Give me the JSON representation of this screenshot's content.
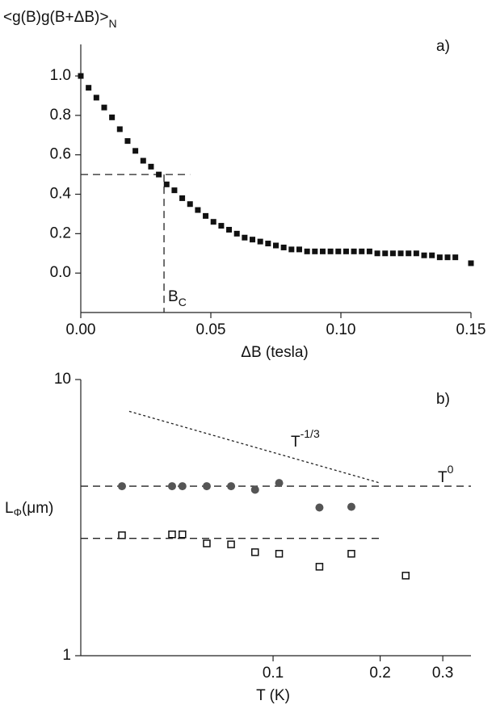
{
  "chart_data": [
    {
      "type": "scatter",
      "panel_label": "a)",
      "ylabel": "<g(B)g(B+ΔB)>",
      "ylabel_sub": "N",
      "xlabel": "ΔB (tesla)",
      "annotations": [
        {
          "text": "B",
          "sub": "C"
        }
      ],
      "xlim": [
        0,
        0.15
      ],
      "ylim": [
        -0.2,
        1.16
      ],
      "xticks": [
        {
          "value": 0,
          "label": "0.00"
        },
        0.05,
        {
          "value": 0.1,
          "label": "0.10"
        },
        0.15
      ],
      "yticks": [
        {
          "value": 0,
          "label": "0.0"
        },
        0.2,
        0.4,
        0.6,
        0.8,
        {
          "value": 1,
          "label": "1.0"
        }
      ],
      "series": [
        {
          "marker": "square",
          "color": "#111",
          "x": [
            0,
            0.003,
            0.006,
            0.009,
            0.012,
            0.015,
            0.018,
            0.021,
            0.024,
            0.027,
            0.03,
            0.033,
            0.036,
            0.039,
            0.042,
            0.045,
            0.048,
            0.051,
            0.054,
            0.057,
            0.06,
            0.063,
            0.066,
            0.069,
            0.072,
            0.075,
            0.078,
            0.081,
            0.084,
            0.087,
            0.09,
            0.093,
            0.096,
            0.099,
            0.102,
            0.105,
            0.108,
            0.111,
            0.114,
            0.117,
            0.12,
            0.123,
            0.126,
            0.129,
            0.132,
            0.135,
            0.138,
            0.141,
            0.144,
            0.15
          ],
          "values": [
            1.0,
            0.94,
            0.89,
            0.84,
            0.79,
            0.73,
            0.67,
            0.62,
            0.57,
            0.54,
            0.5,
            0.45,
            0.42,
            0.38,
            0.35,
            0.32,
            0.29,
            0.26,
            0.24,
            0.22,
            0.2,
            0.18,
            0.17,
            0.16,
            0.15,
            0.14,
            0.13,
            0.12,
            0.12,
            0.11,
            0.11,
            0.11,
            0.11,
            0.11,
            0.11,
            0.11,
            0.11,
            0.11,
            0.1,
            0.1,
            0.1,
            0.1,
            0.1,
            0.1,
            0.09,
            0.09,
            0.08,
            0.08,
            0.08,
            0.05
          ]
        }
      ],
      "reference_lines": [
        {
          "style": "dashed",
          "x": [
            0,
            0.042
          ],
          "y": [
            0.5,
            0.5
          ]
        },
        {
          "style": "dashed",
          "x": [
            0.032,
            0.032
          ],
          "y": [
            0.5,
            -0.2
          ]
        }
      ]
    },
    {
      "type": "scatter",
      "panel_label": "b)",
      "ylabel": "L",
      "ylabel_sub": "Φ",
      "ylabel_tail": "(μm)",
      "xlabel": "T (K)",
      "annotations": [
        {
          "text": "T",
          "sup": "-1/3"
        },
        {
          "text": "T",
          "sup": "0"
        }
      ],
      "xscale": "log",
      "yscale": "log",
      "xlim": [
        0.0288,
        0.36
      ],
      "ylim": [
        1,
        10
      ],
      "xticks": [
        0.1,
        0.2,
        0.3
      ],
      "yticks": [
        1,
        10
      ],
      "series": [
        {
          "marker": "circle",
          "color": "#555",
          "x": [
            0.0376,
            0.052,
            0.0556,
            0.0651,
            0.0762,
            0.089,
            0.104,
            0.135,
            0.166
          ],
          "values": [
            4.11,
            4.11,
            4.11,
            4.11,
            4.11,
            3.99,
            4.22,
            3.44,
            3.46
          ]
        },
        {
          "marker": "open-square",
          "color": "#111",
          "x": [
            0.0376,
            0.052,
            0.0556,
            0.0651,
            0.0762,
            0.089,
            0.104,
            0.135,
            0.166,
            0.236
          ],
          "values": [
            2.73,
            2.75,
            2.75,
            2.55,
            2.53,
            2.37,
            2.34,
            2.1,
            2.34,
            1.95
          ]
        }
      ],
      "reference_lines": [
        {
          "style": "dashed",
          "x": [
            0.0288,
            0.36
          ],
          "y": [
            4.11,
            4.11
          ]
        },
        {
          "style": "dashed",
          "x": [
            0.0288,
            0.2
          ],
          "y": [
            2.66,
            2.66
          ]
        },
        {
          "style": "dotted",
          "x": [
            0.0394,
            0.2
          ],
          "y": [
            7.67,
            4.22
          ]
        }
      ]
    }
  ]
}
